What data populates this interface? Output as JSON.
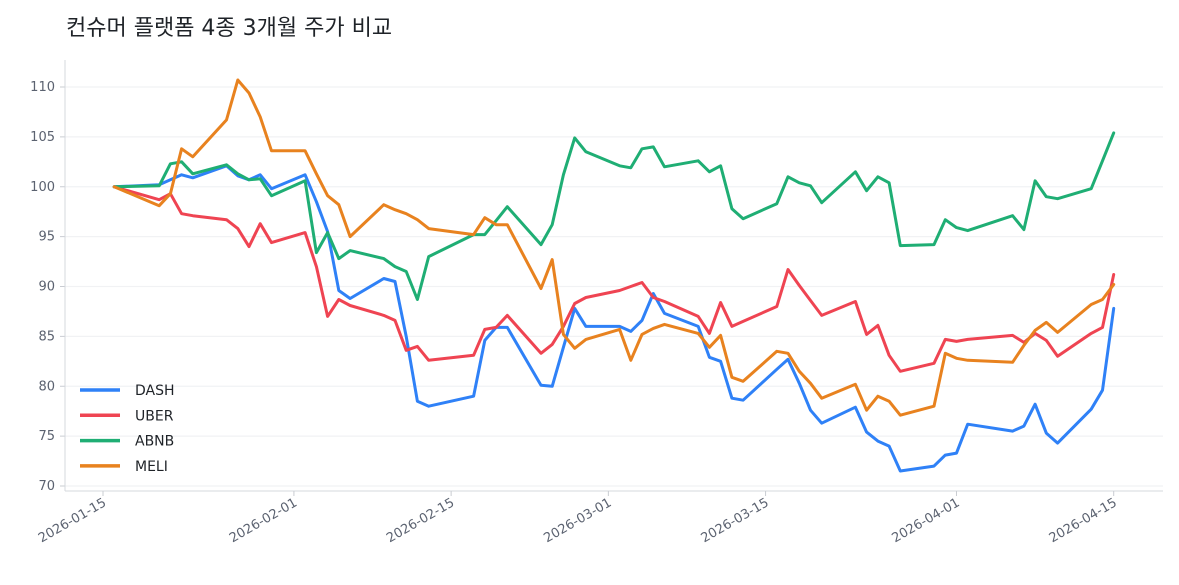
{
  "chart_data": {
    "type": "line",
    "title": "컨슈머 플랫폼 4종 3개월 주가 비교",
    "xlabel": "",
    "ylabel": "",
    "ylim": [
      69.5,
      112.7
    ],
    "yticks": [
      70,
      75,
      80,
      85,
      90,
      95,
      100,
      105,
      110
    ],
    "xticks": [
      "2026-01-15",
      "2026-02-01",
      "2026-02-15",
      "2026-03-01",
      "2026-03-15",
      "2026-04-01",
      "2026-04-15"
    ],
    "grid": "horizontal",
    "legend": "bottom-left",
    "x": [
      "2026-01-16",
      "2026-01-20",
      "2026-01-21",
      "2026-01-22",
      "2026-01-23",
      "2026-01-26",
      "2026-01-27",
      "2026-01-28",
      "2026-01-29",
      "2026-01-30",
      "2026-02-02",
      "2026-02-03",
      "2026-02-04",
      "2026-02-05",
      "2026-02-06",
      "2026-02-09",
      "2026-02-10",
      "2026-02-11",
      "2026-02-12",
      "2026-02-13",
      "2026-02-17",
      "2026-02-18",
      "2026-02-19",
      "2026-02-20",
      "2026-02-23",
      "2026-02-24",
      "2026-02-25",
      "2026-02-26",
      "2026-02-27",
      "2026-03-02",
      "2026-03-03",
      "2026-03-04",
      "2026-03-05",
      "2026-03-06",
      "2026-03-09",
      "2026-03-10",
      "2026-03-11",
      "2026-03-12",
      "2026-03-13",
      "2026-03-16",
      "2026-03-17",
      "2026-03-18",
      "2026-03-19",
      "2026-03-20",
      "2026-03-23",
      "2026-03-24",
      "2026-03-25",
      "2026-03-26",
      "2026-03-27",
      "2026-03-30",
      "2026-03-31",
      "2026-04-01",
      "2026-04-02",
      "2026-04-06",
      "2026-04-07",
      "2026-04-08",
      "2026-04-09",
      "2026-04-10",
      "2026-04-13",
      "2026-04-14",
      "2026-04-15"
    ],
    "series": [
      {
        "name": "DASH",
        "color": "#2f81f7",
        "values": [
          100,
          100.2,
          100.7,
          101.2,
          100.9,
          102.1,
          101.1,
          100.7,
          101.2,
          99.8,
          101.2,
          98.5,
          95.5,
          89.6,
          88.8,
          90.8,
          90.5,
          85.0,
          78.5,
          78.0,
          79.0,
          84.6,
          85.9,
          85.9,
          80.1,
          80.0,
          83.9,
          87.8,
          86.0,
          86.0,
          85.5,
          86.6,
          89.3,
          87.3,
          86.0,
          82.9,
          82.5,
          78.8,
          78.6,
          81.7,
          82.7,
          80.3,
          77.6,
          76.3,
          77.9,
          75.4,
          74.5,
          74.0,
          71.5,
          72.0,
          73.1,
          73.3,
          76.2,
          75.5,
          76.0,
          78.2,
          75.3,
          74.3,
          77.7,
          79.6,
          87.8
        ]
      },
      {
        "name": "UBER",
        "color": "#ef4452",
        "values": [
          100,
          98.7,
          99.3,
          97.3,
          97.1,
          96.7,
          95.8,
          94.0,
          96.3,
          94.4,
          95.4,
          92.0,
          87.0,
          88.7,
          88.1,
          87.1,
          86.6,
          83.6,
          84.0,
          82.6,
          83.1,
          85.7,
          85.9,
          87.1,
          83.3,
          84.2,
          86.0,
          88.3,
          88.9,
          89.6,
          90.0,
          90.4,
          88.9,
          88.5,
          87.0,
          85.3,
          88.4,
          86.0,
          86.5,
          88.0,
          91.7,
          90.1,
          88.6,
          87.1,
          88.5,
          85.2,
          86.1,
          83.1,
          81.5,
          82.3,
          84.7,
          84.5,
          84.7,
          85.1,
          84.4,
          85.3,
          84.6,
          83.0,
          85.3,
          85.9,
          91.2
        ]
      },
      {
        "name": "ABNB",
        "color": "#1fae74",
        "values": [
          100,
          100.1,
          102.3,
          102.5,
          101.3,
          102.2,
          101.3,
          100.7,
          100.8,
          99.1,
          100.6,
          93.4,
          95.4,
          92.8,
          93.6,
          92.8,
          92.0,
          91.5,
          88.7,
          93.0,
          95.2,
          95.2,
          96.6,
          98.0,
          94.2,
          96.2,
          101.2,
          104.9,
          103.5,
          102.1,
          101.9,
          103.8,
          104.0,
          102.0,
          102.6,
          101.5,
          102.1,
          97.8,
          96.8,
          98.3,
          101.0,
          100.4,
          100.1,
          98.4,
          101.5,
          99.6,
          101.0,
          100.4,
          94.1,
          94.2,
          96.7,
          95.9,
          95.6,
          97.1,
          95.7,
          100.6,
          99.0,
          98.8,
          99.8,
          102.6,
          105.4
        ]
      },
      {
        "name": "MELI",
        "color": "#e8821f",
        "values": [
          100,
          98.1,
          99.3,
          103.8,
          103.0,
          106.7,
          110.7,
          109.4,
          107.0,
          103.6,
          103.6,
          101.3,
          99.1,
          98.2,
          95.0,
          98.2,
          97.7,
          97.3,
          96.7,
          95.8,
          95.2,
          96.9,
          96.2,
          96.2,
          89.8,
          92.7,
          85.2,
          83.8,
          84.7,
          85.7,
          82.6,
          85.2,
          85.8,
          86.2,
          85.3,
          83.9,
          85.1,
          80.9,
          80.5,
          83.5,
          83.3,
          81.5,
          80.3,
          78.8,
          80.2,
          77.6,
          79.0,
          78.5,
          77.1,
          78.0,
          83.3,
          82.8,
          82.6,
          82.4,
          84.1,
          85.6,
          86.4,
          85.4,
          88.2,
          88.7,
          90.2
        ]
      }
    ]
  }
}
